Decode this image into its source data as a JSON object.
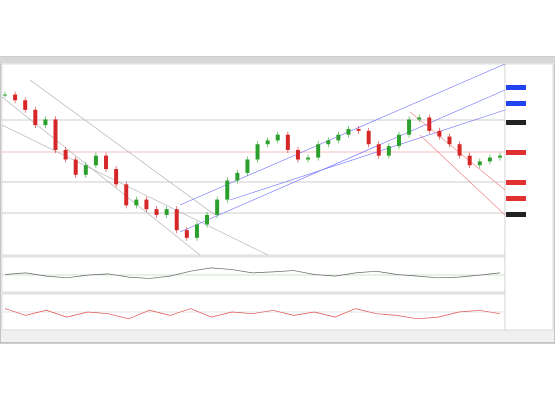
{
  "chart_data": [
    {
      "type": "candlestick",
      "up_color": "#2ca02c",
      "down_color": "#d62728",
      "ylim": [
        0,
        100
      ],
      "values": [
        84,
        81,
        76,
        68,
        71,
        55,
        50,
        42,
        47,
        52,
        45,
        37,
        26,
        29,
        24,
        21,
        24,
        13,
        9,
        16,
        21,
        29,
        39,
        43,
        50,
        58,
        60,
        63,
        55,
        50,
        51,
        58,
        60,
        63,
        66,
        65,
        58,
        52,
        57,
        63,
        71,
        72,
        65,
        62,
        58,
        52,
        47,
        49,
        51,
        52
      ]
    },
    {
      "type": "line",
      "color": "#666666",
      "ylim": [
        0,
        100
      ],
      "values": [
        50,
        55,
        45,
        40,
        48,
        52,
        42,
        38,
        45,
        60,
        70,
        65,
        55,
        58,
        62,
        50,
        45,
        55,
        60,
        50,
        45,
        40,
        42,
        48,
        55
      ]
    },
    {
      "type": "line",
      "color": "#e05050",
      "ylim": [
        0,
        100
      ],
      "values": [
        60,
        40,
        55,
        35,
        50,
        45,
        30,
        55,
        40,
        60,
        35,
        50,
        45,
        55,
        40,
        50,
        35,
        60,
        45,
        40,
        30,
        35,
        50,
        55,
        45
      ]
    }
  ]
}
